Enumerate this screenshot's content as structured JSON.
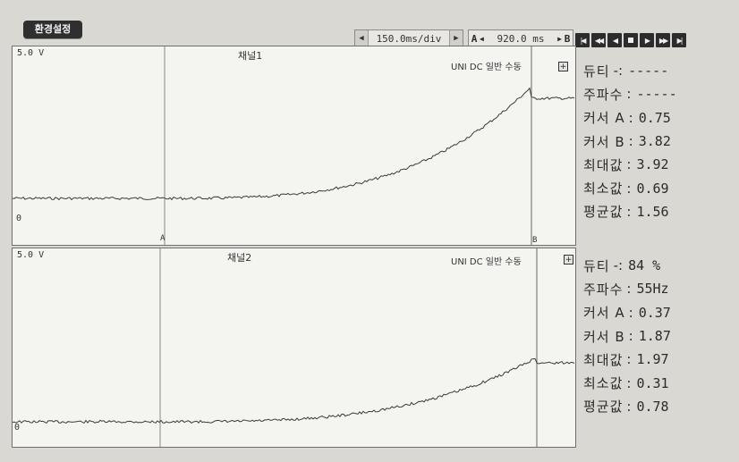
{
  "toolbar": {
    "settings_label": "환경설정",
    "timebase_value": "150.0ms/div",
    "cursor_span_label_a": "A",
    "cursor_span_value": "920.0 ms",
    "cursor_span_label_b": "B"
  },
  "panels": [
    {
      "scale_label": "5.0 V",
      "channel_title": "채널1",
      "mode_label": "UNI DC  일반  수동",
      "zero_label": "0",
      "cursor_a_label": "A",
      "cursor_b_label": "B"
    },
    {
      "scale_label": "5.0 V",
      "channel_title": "채널2",
      "mode_label": "UNI DC  일반  수동",
      "zero_label": "0"
    }
  ],
  "stats": [
    [
      {
        "key": "듀티",
        "sep": "-:",
        "value": "-----"
      },
      {
        "key": "주파수",
        "sep": ":",
        "value": "-----"
      },
      {
        "key": "커서 A",
        "sep": ":",
        "value": "0.75"
      },
      {
        "key": "커서 B",
        "sep": ":",
        "value": "3.82"
      },
      {
        "key": "최대값",
        "sep": ":",
        "value": "3.92"
      },
      {
        "key": "최소값",
        "sep": ":",
        "value": "0.69"
      },
      {
        "key": "평균값",
        "sep": ":",
        "value": "1.56"
      }
    ],
    [
      {
        "key": "듀티",
        "sep": "-:",
        "value": "84 %"
      },
      {
        "key": "주파수",
        "sep": ":",
        "value": "55Hz"
      },
      {
        "key": "커서 A",
        "sep": ":",
        "value": "0.37"
      },
      {
        "key": "커서 B",
        "sep": ":",
        "value": "1.87"
      },
      {
        "key": "최대값",
        "sep": ":",
        "value": "1.97"
      },
      {
        "key": "최소값",
        "sep": ":",
        "value": "0.31"
      },
      {
        "key": "평균값",
        "sep": ":",
        "value": "0.78"
      }
    ]
  ],
  "icons": {
    "transport": [
      "skip-start-icon",
      "rewind-icon",
      "step-back-icon",
      "stop-icon",
      "play-icon",
      "fast-forward-icon",
      "skip-end-icon"
    ]
  },
  "colors": {
    "trace": "#3a3a3a",
    "panel_bg": "#f4f4f1",
    "button_dark": "#2c2c2c"
  }
}
